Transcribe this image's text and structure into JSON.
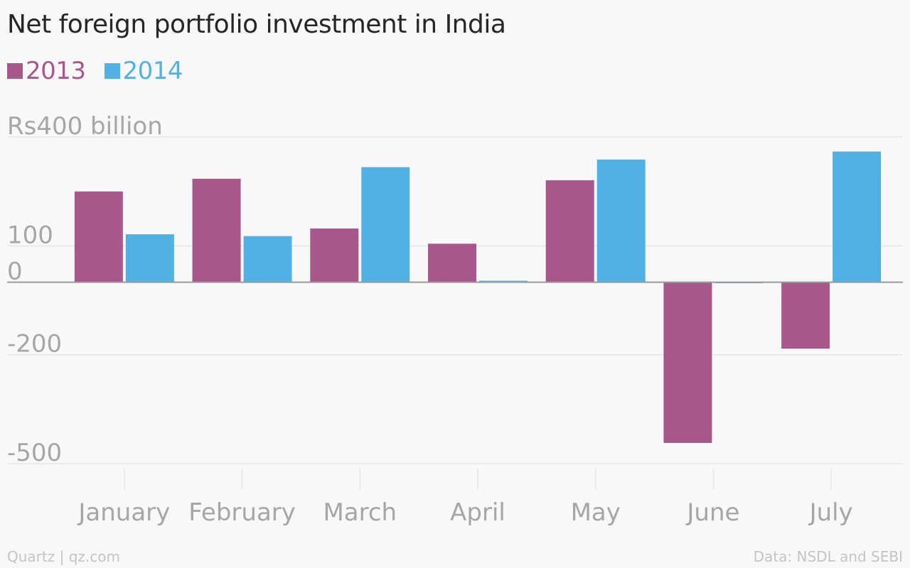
{
  "header": {
    "title": "Net foreign portfolio investment in India"
  },
  "footer": {
    "source_left": "Quartz | qz.com",
    "source_right": "Data: NSDL and SEBI"
  },
  "colors": {
    "series_2013": "#a8578a",
    "series_2014": "#52b1e3",
    "grid": "#e6e6e6",
    "axis_text": "#a6a6a6",
    "zero_line": "#9a9a9a"
  },
  "chart_data": {
    "type": "bar",
    "title": "Net foreign portfolio investment in India",
    "xlabel": "",
    "ylabel": "",
    "categories": [
      "January",
      "February",
      "March",
      "April",
      "May",
      "June",
      "July"
    ],
    "series": [
      {
        "name": "2013",
        "values": [
          250,
          285,
          148,
          106,
          281,
          -443,
          -183
        ]
      },
      {
        "name": "2014",
        "values": [
          132,
          127,
          317,
          4,
          338,
          0,
          360
        ]
      }
    ],
    "y_ticks": [
      {
        "value": 400,
        "label": "Rs400 billion"
      },
      {
        "value": 100,
        "label": "100"
      },
      {
        "value": 0,
        "label": "0"
      },
      {
        "value": -200,
        "label": "-200"
      },
      {
        "value": -500,
        "label": "-500"
      }
    ],
    "ylim": [
      -500,
      400
    ],
    "grid": true,
    "legend_position": "top-left"
  }
}
